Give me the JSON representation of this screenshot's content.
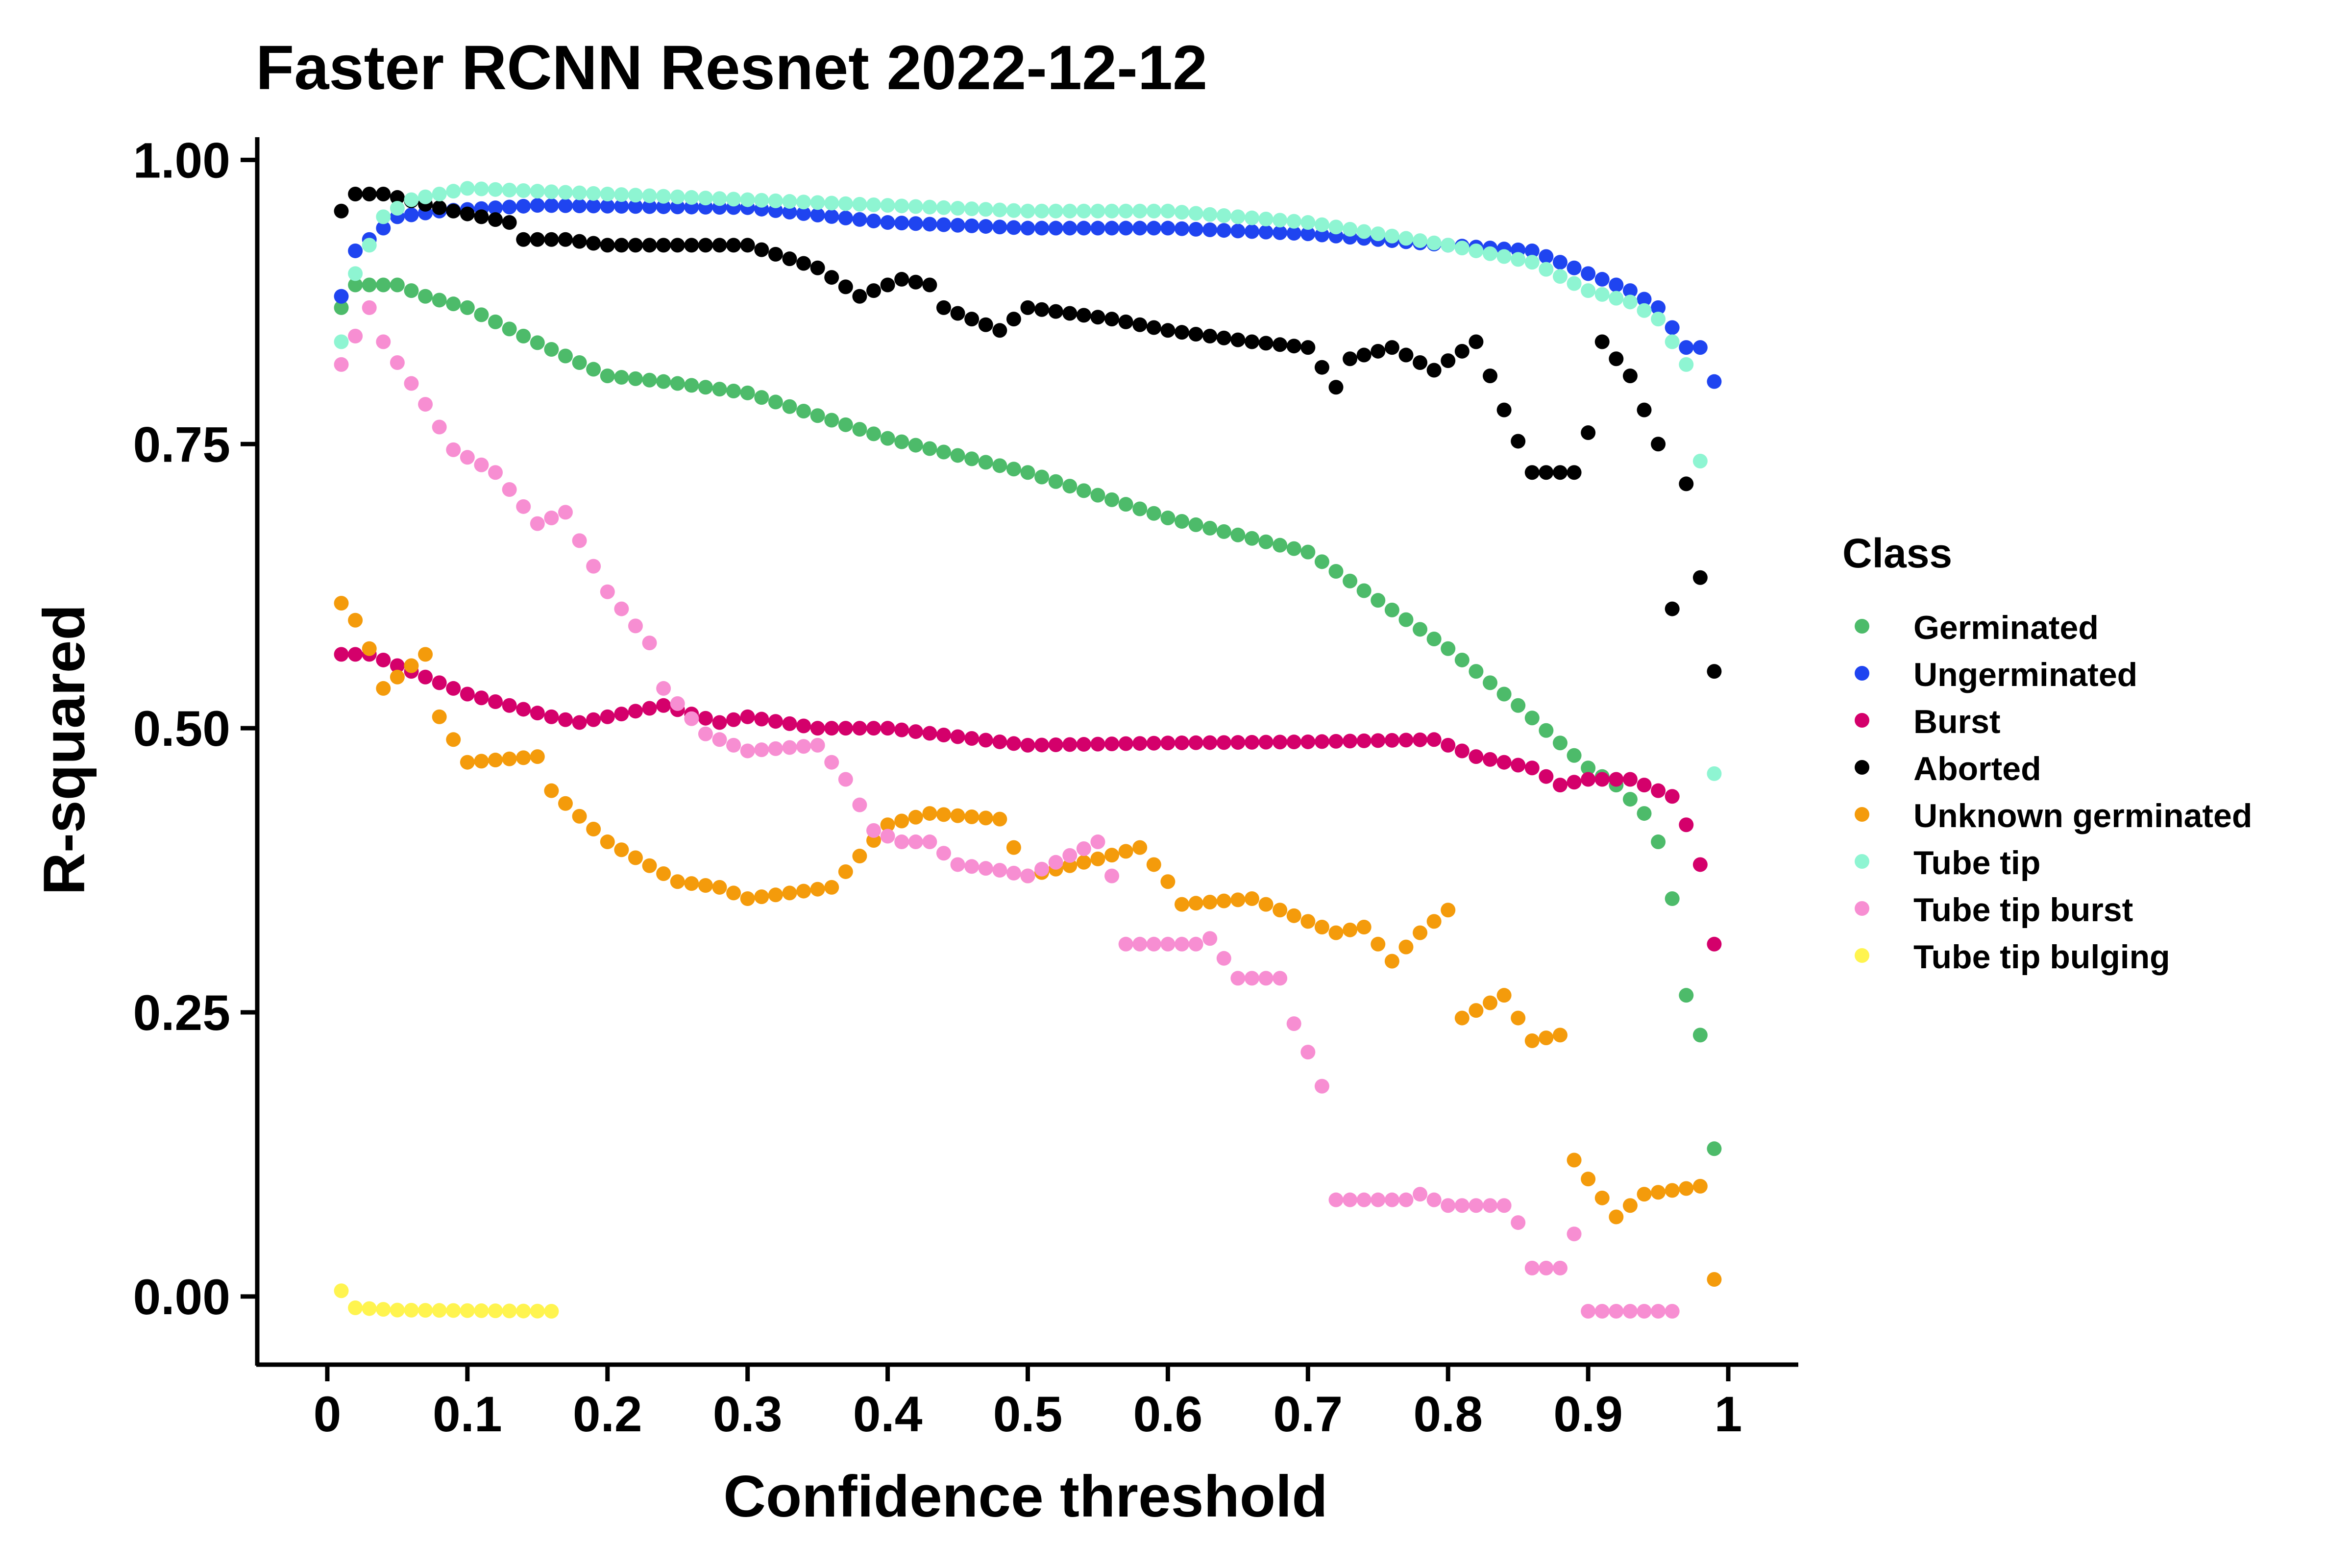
{
  "chart_data": {
    "type": "scatter",
    "title": "Faster RCNN Resnet 2022-12-12",
    "xlabel": "Confidence threshold",
    "ylabel": "R-squared",
    "xlim": [
      -0.05,
      1.05
    ],
    "ylim": [
      -0.06,
      1.02
    ],
    "x_ticks": [
      0,
      0.1,
      0.2,
      0.3,
      0.4,
      0.5,
      0.6,
      0.7,
      0.8,
      0.9,
      1
    ],
    "x_tick_labels": [
      "0",
      "0.1",
      "0.2",
      "0.3",
      "0.4",
      "0.5",
      "0.6",
      "0.7",
      "0.8",
      "0.9",
      "1"
    ],
    "y_ticks": [
      0,
      0.25,
      0.5,
      0.75,
      1
    ],
    "y_tick_labels": [
      "0.00",
      "0.25",
      "0.50",
      "0.75",
      "1.00"
    ],
    "grid": false,
    "legend_position": "right",
    "legend_title": "Class",
    "series": [
      {
        "name": "Germinated",
        "color": "#4dbb6a",
        "anchors": [
          [
            0.01,
            0.87
          ],
          [
            0.02,
            0.89
          ],
          [
            0.05,
            0.89
          ],
          [
            0.07,
            0.88
          ],
          [
            0.1,
            0.87
          ],
          [
            0.14,
            0.845
          ],
          [
            0.2,
            0.81
          ],
          [
            0.24,
            0.805
          ],
          [
            0.3,
            0.795
          ],
          [
            0.4,
            0.755
          ],
          [
            0.5,
            0.725
          ],
          [
            0.6,
            0.685
          ],
          [
            0.7,
            0.655
          ],
          [
            0.8,
            0.57
          ],
          [
            0.85,
            0.52
          ],
          [
            0.9,
            0.465
          ],
          [
            0.92,
            0.45
          ],
          [
            0.94,
            0.425
          ],
          [
            0.95,
            0.4
          ],
          [
            0.96,
            0.35
          ],
          [
            0.97,
            0.265
          ],
          [
            0.98,
            0.23
          ],
          [
            0.99,
            0.13
          ]
        ]
      },
      {
        "name": "Ungerminated",
        "color": "#1f44f0",
        "anchors": [
          [
            0.01,
            0.88
          ],
          [
            0.02,
            0.92
          ],
          [
            0.03,
            0.93
          ],
          [
            0.05,
            0.95
          ],
          [
            0.08,
            0.955
          ],
          [
            0.15,
            0.96
          ],
          [
            0.3,
            0.958
          ],
          [
            0.4,
            0.945
          ],
          [
            0.5,
            0.94
          ],
          [
            0.6,
            0.94
          ],
          [
            0.7,
            0.935
          ],
          [
            0.8,
            0.925
          ],
          [
            0.86,
            0.92
          ],
          [
            0.9,
            0.9
          ],
          [
            0.93,
            0.885
          ],
          [
            0.95,
            0.87
          ],
          [
            0.97,
            0.835
          ],
          [
            0.98,
            0.835
          ],
          [
            0.99,
            0.805
          ]
        ]
      },
      {
        "name": "Burst",
        "color": "#d4006b",
        "anchors": [
          [
            0.01,
            0.565
          ],
          [
            0.03,
            0.565
          ],
          [
            0.07,
            0.545
          ],
          [
            0.1,
            0.53
          ],
          [
            0.16,
            0.51
          ],
          [
            0.18,
            0.505
          ],
          [
            0.24,
            0.52
          ],
          [
            0.28,
            0.505
          ],
          [
            0.3,
            0.51
          ],
          [
            0.35,
            0.5
          ],
          [
            0.4,
            0.5
          ],
          [
            0.5,
            0.485
          ],
          [
            0.6,
            0.487
          ],
          [
            0.7,
            0.488
          ],
          [
            0.79,
            0.49
          ],
          [
            0.82,
            0.475
          ],
          [
            0.86,
            0.465
          ],
          [
            0.88,
            0.45
          ],
          [
            0.9,
            0.455
          ],
          [
            0.93,
            0.455
          ],
          [
            0.96,
            0.44
          ],
          [
            0.97,
            0.415
          ],
          [
            0.98,
            0.38
          ],
          [
            0.99,
            0.31
          ]
        ]
      },
      {
        "name": "Aborted",
        "color": "#000000",
        "anchors": [
          [
            0.01,
            0.955
          ],
          [
            0.02,
            0.97
          ],
          [
            0.04,
            0.97
          ],
          [
            0.09,
            0.955
          ],
          [
            0.13,
            0.945
          ],
          [
            0.14,
            0.93
          ],
          [
            0.17,
            0.93
          ],
          [
            0.2,
            0.925
          ],
          [
            0.3,
            0.925
          ],
          [
            0.35,
            0.905
          ],
          [
            0.38,
            0.88
          ],
          [
            0.41,
            0.895
          ],
          [
            0.43,
            0.89
          ],
          [
            0.44,
            0.87
          ],
          [
            0.48,
            0.85
          ],
          [
            0.5,
            0.87
          ],
          [
            0.56,
            0.86
          ],
          [
            0.6,
            0.85
          ],
          [
            0.66,
            0.84
          ],
          [
            0.7,
            0.835
          ],
          [
            0.72,
            0.8
          ],
          [
            0.73,
            0.825
          ],
          [
            0.76,
            0.835
          ],
          [
            0.79,
            0.815
          ],
          [
            0.82,
            0.84
          ],
          [
            0.84,
            0.78
          ],
          [
            0.86,
            0.725
          ],
          [
            0.89,
            0.725
          ],
          [
            0.9,
            0.76
          ],
          [
            0.91,
            0.84
          ],
          [
            0.93,
            0.81
          ],
          [
            0.95,
            0.75
          ],
          [
            0.96,
            0.605
          ],
          [
            0.97,
            0.715
          ],
          [
            0.99,
            0.55
          ]
        ]
      },
      {
        "name": "Unknown germinated",
        "color": "#f49b0b",
        "anchors": [
          [
            0.01,
            0.61
          ],
          [
            0.02,
            0.595
          ],
          [
            0.03,
            0.57
          ],
          [
            0.04,
            0.535
          ],
          [
            0.07,
            0.565
          ],
          [
            0.08,
            0.51
          ],
          [
            0.1,
            0.47
          ],
          [
            0.15,
            0.475
          ],
          [
            0.16,
            0.445
          ],
          [
            0.2,
            0.4
          ],
          [
            0.25,
            0.365
          ],
          [
            0.28,
            0.36
          ],
          [
            0.3,
            0.35
          ],
          [
            0.36,
            0.36
          ],
          [
            0.4,
            0.415
          ],
          [
            0.43,
            0.425
          ],
          [
            0.48,
            0.42
          ],
          [
            0.5,
            0.37
          ],
          [
            0.55,
            0.385
          ],
          [
            0.58,
            0.395
          ],
          [
            0.6,
            0.365
          ],
          [
            0.61,
            0.345
          ],
          [
            0.66,
            0.35
          ],
          [
            0.68,
            0.34
          ],
          [
            0.72,
            0.32
          ],
          [
            0.74,
            0.325
          ],
          [
            0.76,
            0.295
          ],
          [
            0.78,
            0.32
          ],
          [
            0.8,
            0.34
          ],
          [
            0.81,
            0.245
          ],
          [
            0.84,
            0.265
          ],
          [
            0.86,
            0.225
          ],
          [
            0.88,
            0.23
          ],
          [
            0.89,
            0.12
          ],
          [
            0.92,
            0.07
          ],
          [
            0.94,
            0.09
          ],
          [
            0.97,
            0.095
          ],
          [
            0.98,
            0.097
          ],
          [
            0.99,
            0.015
          ]
        ]
      },
      {
        "name": "Tube tip",
        "color": "#8ef5d2",
        "anchors": [
          [
            0.01,
            0.84
          ],
          [
            0.02,
            0.9
          ],
          [
            0.04,
            0.95
          ],
          [
            0.06,
            0.965
          ],
          [
            0.1,
            0.975
          ],
          [
            0.2,
            0.97
          ],
          [
            0.3,
            0.965
          ],
          [
            0.4,
            0.96
          ],
          [
            0.5,
            0.955
          ],
          [
            0.6,
            0.955
          ],
          [
            0.7,
            0.945
          ],
          [
            0.8,
            0.925
          ],
          [
            0.86,
            0.91
          ],
          [
            0.9,
            0.885
          ],
          [
            0.93,
            0.875
          ],
          [
            0.95,
            0.86
          ],
          [
            0.97,
            0.82
          ],
          [
            0.98,
            0.735
          ],
          [
            0.99,
            0.46
          ]
        ]
      },
      {
        "name": "Tube tip burst",
        "color": "#f78ed2",
        "anchors": [
          [
            0.01,
            0.82
          ],
          [
            0.03,
            0.87
          ],
          [
            0.04,
            0.84
          ],
          [
            0.07,
            0.785
          ],
          [
            0.09,
            0.745
          ],
          [
            0.12,
            0.725
          ],
          [
            0.15,
            0.68
          ],
          [
            0.17,
            0.69
          ],
          [
            0.18,
            0.665
          ],
          [
            0.2,
            0.62
          ],
          [
            0.23,
            0.575
          ],
          [
            0.24,
            0.535
          ],
          [
            0.27,
            0.495
          ],
          [
            0.3,
            0.48
          ],
          [
            0.35,
            0.485
          ],
          [
            0.37,
            0.455
          ],
          [
            0.39,
            0.41
          ],
          [
            0.41,
            0.4
          ],
          [
            0.43,
            0.4
          ],
          [
            0.45,
            0.38
          ],
          [
            0.48,
            0.375
          ],
          [
            0.5,
            0.37
          ],
          [
            0.55,
            0.4
          ],
          [
            0.56,
            0.37
          ],
          [
            0.57,
            0.31
          ],
          [
            0.62,
            0.31
          ],
          [
            0.63,
            0.315
          ],
          [
            0.65,
            0.28
          ],
          [
            0.68,
            0.28
          ],
          [
            0.69,
            0.24
          ],
          [
            0.7,
            0.215
          ],
          [
            0.71,
            0.185
          ],
          [
            0.72,
            0.085
          ],
          [
            0.77,
            0.085
          ],
          [
            0.78,
            0.09
          ],
          [
            0.8,
            0.08
          ],
          [
            0.84,
            0.08
          ],
          [
            0.85,
            0.065
          ],
          [
            0.86,
            0.025
          ],
          [
            0.88,
            0.025
          ],
          [
            0.89,
            0.055
          ],
          [
            0.9,
            -0.013
          ],
          [
            0.96,
            -0.013
          ]
        ]
      },
      {
        "name": "Tube tip bulging",
        "color": "#fff44f",
        "anchors": [
          [
            0.01,
            0.005
          ],
          [
            0.02,
            -0.01
          ],
          [
            0.05,
            -0.012
          ],
          [
            0.16,
            -0.013
          ]
        ]
      }
    ]
  }
}
